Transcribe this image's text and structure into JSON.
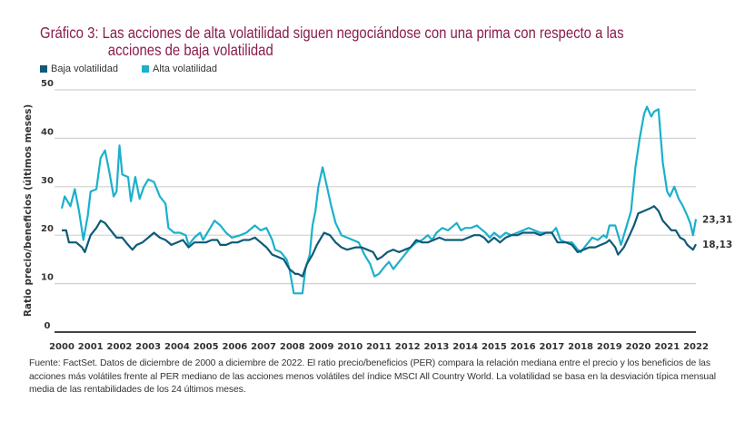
{
  "title": {
    "line1": "Gráfico 3: Las acciones de alta volatilidad siguen negociándose con una prima con respecto a las",
    "line2": "acciones de baja volatilidad"
  },
  "footnote": "Fuente: FactSet. Datos de diciembre de 2000 a diciembre de 2022. El ratio precio/beneficios (PER) compara la relación mediana entre el precio y los beneficios de las acciones más volátiles frente al PER mediano de las acciones menos volátiles del índice MSCI All Country World. La volatilidad se basa en la desviación típica mensual media de las rentabilidades de los 24 últimos meses.",
  "colors": {
    "low": "#0e5a78",
    "high": "#1cb0cc",
    "title": "#8a1c4c"
  },
  "chart_data": {
    "type": "line",
    "title": "Gráfico 3: Las acciones de alta volatilidad siguen negociándose con una prima con respecto a las acciones de baja volatilidad",
    "xlabel": "",
    "ylabel": "Ratio precio/beneficios (últimos meses)",
    "xlim": [
      2000,
      2022
    ],
    "ylim": [
      0,
      50
    ],
    "grid": true,
    "legend": "top-left",
    "x_ticks": [
      "2000",
      "2001",
      "2002",
      "2003",
      "2004",
      "2005",
      "2006",
      "2007",
      "2008",
      "2009",
      "2010",
      "2011",
      "2012",
      "2013",
      "2014",
      "2015",
      "2016",
      "2017",
      "2018",
      "2019",
      "2020",
      "2021",
      "2022"
    ],
    "y_ticks": [
      "0",
      "10",
      "20",
      "30",
      "40",
      "50"
    ],
    "series": [
      {
        "name": "Baja volatilidad",
        "end_label": "18,13",
        "x": [
          2000,
          2000.15,
          2000.25,
          2000.5,
          2000.7,
          2000.8,
          2001,
          2001.2,
          2001.35,
          2001.5,
          2001.7,
          2001.9,
          2002.1,
          2002.3,
          2002.45,
          2002.6,
          2002.8,
          2003,
          2003.2,
          2003.4,
          2003.6,
          2003.8,
          2004,
          2004.2,
          2004.4,
          2004.6,
          2004.8,
          2005,
          2005.2,
          2005.4,
          2005.5,
          2005.7,
          2005.9,
          2006.1,
          2006.3,
          2006.5,
          2006.7,
          2006.9,
          2007.1,
          2007.3,
          2007.5,
          2007.7,
          2007.9,
          2008.1,
          2008.2,
          2008.35,
          2008.5,
          2008.7,
          2008.85,
          2009,
          2009.1,
          2009.3,
          2009.5,
          2009.7,
          2009.9,
          2010.2,
          2010.4,
          2010.6,
          2010.8,
          2010.95,
          2011.1,
          2011.3,
          2011.5,
          2011.7,
          2011.9,
          2012.1,
          2012.3,
          2012.5,
          2012.7,
          2012.9,
          2013.1,
          2013.3,
          2013.5,
          2013.7,
          2013.9,
          2014.1,
          2014.3,
          2014.5,
          2014.65,
          2014.8,
          2015,
          2015.2,
          2015.4,
          2015.6,
          2015.8,
          2016,
          2016.2,
          2016.4,
          2016.6,
          2016.8,
          2017,
          2017.2,
          2017.5,
          2017.7,
          2017.9,
          2018.1,
          2018.3,
          2018.5,
          2018.7,
          2018.9,
          2019,
          2019.2,
          2019.3,
          2019.5,
          2019.7,
          2019.85,
          2020,
          2020.2,
          2020.4,
          2020.55,
          2020.7,
          2020.85,
          2021,
          2021.15,
          2021.3,
          2021.45,
          2021.6,
          2021.7,
          2021.8,
          2021.9,
          2022
        ],
        "values": [
          21,
          21,
          18.5,
          18.5,
          17.5,
          16.5,
          20,
          21.5,
          23,
          22.5,
          21,
          19.5,
          19.5,
          18,
          17,
          18,
          18.5,
          19.5,
          20.5,
          19.5,
          19,
          18,
          18.5,
          19,
          17.5,
          18.5,
          18.5,
          18.5,
          19,
          19,
          18,
          18,
          18.5,
          18.5,
          19,
          19,
          19.5,
          18.5,
          17.5,
          16,
          15.5,
          15,
          13,
          12,
          12,
          11.5,
          14,
          16,
          18,
          19.5,
          20.5,
          20,
          18.5,
          17.5,
          17,
          17.5,
          17.5,
          17,
          16.5,
          15,
          15.5,
          16.5,
          17,
          16.5,
          17,
          17.5,
          19,
          18.5,
          18.5,
          19,
          19.5,
          19,
          19,
          19,
          19,
          19.5,
          20,
          20,
          19.5,
          18.5,
          19.5,
          18.5,
          19.5,
          20,
          20,
          20.5,
          20.5,
          20.5,
          20,
          20.5,
          20.5,
          18.5,
          18.5,
          18,
          16.5,
          17,
          17.5,
          17.5,
          18,
          18.5,
          19,
          17.5,
          16,
          17.5,
          20,
          22,
          24.5,
          25,
          25.5,
          26,
          25,
          23,
          22,
          21,
          21,
          19.5,
          19,
          18,
          17.5,
          17,
          18.13
        ]
      },
      {
        "name": "Alta volatilidad",
        "end_label": "23,31",
        "x": [
          2000,
          2000.1,
          2000.3,
          2000.45,
          2000.6,
          2000.75,
          2000.9,
          2001,
          2001.2,
          2001.35,
          2001.5,
          2001.65,
          2001.8,
          2001.9,
          2002,
          2002.1,
          2002.3,
          2002.4,
          2002.55,
          2002.7,
          2002.85,
          2003,
          2003.2,
          2003.4,
          2003.6,
          2003.7,
          2003.9,
          2004.1,
          2004.3,
          2004.4,
          2004.6,
          2004.8,
          2004.9,
          2005.1,
          2005.3,
          2005.5,
          2005.7,
          2005.9,
          2006.2,
          2006.4,
          2006.5,
          2006.7,
          2006.9,
          2007.1,
          2007.3,
          2007.4,
          2007.6,
          2007.8,
          2007.9,
          2008.05,
          2008.2,
          2008.35,
          2008.45,
          2008.6,
          2008.7,
          2008.8,
          2008.9,
          2009.05,
          2009.2,
          2009.35,
          2009.5,
          2009.7,
          2009.9,
          2010.1,
          2010.3,
          2010.5,
          2010.7,
          2010.85,
          2011,
          2011.2,
          2011.35,
          2011.5,
          2011.7,
          2011.9,
          2012.1,
          2012.3,
          2012.5,
          2012.7,
          2012.85,
          2013,
          2013.2,
          2013.4,
          2013.5,
          2013.7,
          2013.85,
          2014,
          2014.2,
          2014.4,
          2014.5,
          2014.7,
          2014.85,
          2015,
          2015.2,
          2015.4,
          2015.6,
          2015.8,
          2016,
          2016.2,
          2016.4,
          2016.6,
          2016.8,
          2017,
          2017.15,
          2017.3,
          2017.5,
          2017.7,
          2017.9,
          2018,
          2018.2,
          2018.4,
          2018.6,
          2018.8,
          2018.9,
          2019,
          2019.2,
          2019.4,
          2019.6,
          2019.75,
          2019.9,
          2020.05,
          2020.2,
          2020.3,
          2020.45,
          2020.55,
          2020.7,
          2020.85,
          2021,
          2021.1,
          2021.25,
          2021.4,
          2021.55,
          2021.7,
          2021.8,
          2021.9,
          2022
        ],
        "values": [
          25.5,
          28,
          26,
          29.5,
          25,
          19,
          24,
          29,
          29.5,
          36,
          37.5,
          33,
          28,
          29,
          38.5,
          32.5,
          32,
          27,
          32,
          27.5,
          30,
          31.5,
          31,
          28,
          26.5,
          21.5,
          20.5,
          20.5,
          20,
          18,
          19.5,
          20.5,
          19,
          21,
          23,
          22,
          20.5,
          19.5,
          20,
          20.5,
          21,
          22,
          21,
          21.5,
          19,
          17,
          16.5,
          15,
          13,
          8,
          8,
          8,
          13,
          16,
          22,
          25,
          30,
          34,
          30,
          26,
          22.5,
          20,
          19.5,
          19,
          18.5,
          16,
          14,
          11.5,
          12,
          13.5,
          14.5,
          13,
          14.5,
          16,
          17.5,
          18.5,
          19,
          20,
          19,
          20.5,
          21.5,
          21,
          21.5,
          22.5,
          21,
          21.5,
          21.5,
          22,
          21.5,
          20.5,
          19.5,
          20.5,
          19.5,
          20.5,
          20,
          20.5,
          21,
          21.5,
          21,
          20.5,
          20.5,
          20.5,
          21.5,
          19,
          18.5,
          18.5,
          17,
          16.5,
          18,
          19.5,
          19,
          20,
          19.5,
          22,
          22,
          18,
          22,
          25,
          34,
          40,
          45,
          46.5,
          44.5,
          45.5,
          46,
          35,
          29,
          28,
          30,
          27.5,
          26,
          24,
          22.5,
          20,
          23.31
        ]
      }
    ]
  }
}
